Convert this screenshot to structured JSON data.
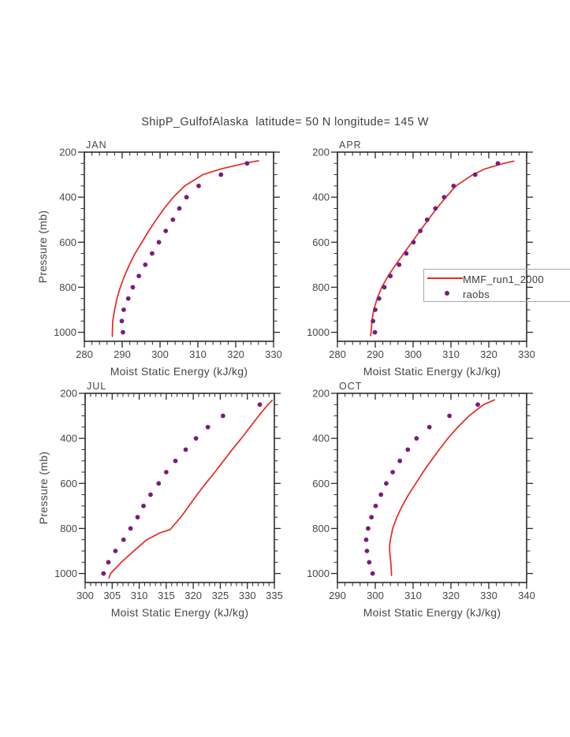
{
  "title": "ShipP_GulfofAlaska  latitude= 50 N longitude= 145 W",
  "colors": {
    "mmf_line": "#e8291f",
    "raobs_dot": "#7c1a7e",
    "frame": "#2a2a2a",
    "text": "#474747",
    "legend_border": "#a8a8a8"
  },
  "legend": {
    "items": [
      {
        "label": "MMF_run1_2000",
        "marker": "red-line"
      },
      {
        "label": "raobs",
        "marker": "purple-dot"
      }
    ]
  },
  "chart_data": [
    {
      "type": "line",
      "panel_label": "JAN",
      "xlabel": "Moist Static Energy (kJ/kg)",
      "ylabel": "Pressure (mb)",
      "xlim": [
        280,
        330
      ],
      "xticks": [
        280,
        290,
        300,
        310,
        320,
        330
      ],
      "xminor_step": 2,
      "ylim": [
        200,
        1040
      ],
      "yticks": [
        200,
        400,
        600,
        800,
        1000
      ],
      "yminor_step": 50,
      "series": [
        {
          "name": "MMF_run1_2000",
          "kind": "line",
          "color_key": "mmf_line",
          "pressure": [
            1018,
            1000,
            950,
            900,
            850,
            800,
            750,
            700,
            650,
            600,
            550,
            500,
            450,
            400,
            350,
            300,
            275,
            250,
            238
          ],
          "values": [
            287.4,
            287.4,
            287.5,
            288.0,
            288.6,
            289.5,
            290.6,
            291.9,
            293.4,
            295.2,
            297.0,
            299.0,
            301.1,
            303.5,
            306.5,
            311.3,
            316.0,
            322.3,
            326.0
          ]
        },
        {
          "name": "raobs",
          "kind": "scatter",
          "color_key": "raobs_dot",
          "pressure": [
            1000,
            950,
            900,
            850,
            800,
            750,
            700,
            650,
            600,
            550,
            500,
            450,
            400,
            350,
            300,
            250
          ],
          "values": [
            290.2,
            289.9,
            290.4,
            291.6,
            292.8,
            294.4,
            296.1,
            297.9,
            299.7,
            301.5,
            303.4,
            305.1,
            307.0,
            310.2,
            316.1,
            323.0
          ]
        }
      ]
    },
    {
      "type": "line",
      "panel_label": "APR",
      "xlabel": "Moist Static Energy (kJ/kg)",
      "ylabel": "Pressure (mb)",
      "xlim": [
        280,
        330
      ],
      "xticks": [
        280,
        290,
        300,
        310,
        320,
        330
      ],
      "xminor_step": 2,
      "ylim": [
        200,
        1040
      ],
      "yticks": [
        200,
        400,
        600,
        800,
        1000
      ],
      "yminor_step": 50,
      "series": [
        {
          "name": "MMF_run1_2000",
          "kind": "line",
          "color_key": "mmf_line",
          "pressure": [
            1015,
            1000,
            950,
            900,
            850,
            800,
            750,
            700,
            650,
            600,
            550,
            500,
            450,
            400,
            350,
            300,
            275,
            250,
            240
          ],
          "values": [
            288.8,
            288.9,
            289.1,
            289.6,
            290.5,
            291.7,
            293.4,
            295.4,
            297.5,
            299.7,
            301.8,
            304.0,
            306.2,
            308.7,
            311.3,
            315.8,
            318.9,
            323.9,
            326.6
          ]
        },
        {
          "name": "raobs",
          "kind": "scatter",
          "color_key": "raobs_dot",
          "pressure": [
            1000,
            950,
            900,
            850,
            800,
            750,
            700,
            650,
            600,
            550,
            500,
            450,
            400,
            350,
            300,
            250
          ],
          "values": [
            289.9,
            289.4,
            290.0,
            291.0,
            292.4,
            294.0,
            296.3,
            298.2,
            300.1,
            301.9,
            303.7,
            305.9,
            308.2,
            310.7,
            316.4,
            322.4
          ]
        }
      ]
    },
    {
      "type": "line",
      "panel_label": "JUL",
      "xlabel": "Moist Static Energy (kJ/kg)",
      "ylabel": "Pressure (mb)",
      "xlim": [
        300,
        335
      ],
      "xticks": [
        300,
        305,
        310,
        315,
        320,
        325,
        330,
        335
      ],
      "xminor_step": 1,
      "ylim": [
        200,
        1040
      ],
      "yticks": [
        200,
        400,
        600,
        800,
        1000
      ],
      "yminor_step": 50,
      "series": [
        {
          "name": "MMF_run1_2000",
          "kind": "line",
          "color_key": "mmf_line",
          "pressure": [
            1020,
            1000,
            950,
            900,
            850,
            820,
            805,
            750,
            700,
            650,
            600,
            550,
            500,
            450,
            400,
            350,
            300,
            250,
            231
          ],
          "values": [
            304.4,
            304.7,
            306.7,
            309.0,
            311.4,
            313.8,
            315.7,
            317.7,
            319.2,
            320.7,
            322.3,
            324.0,
            325.6,
            327.2,
            328.9,
            330.5,
            332.1,
            333.8,
            334.6
          ]
        },
        {
          "name": "raobs",
          "kind": "scatter",
          "color_key": "raobs_dot",
          "pressure": [
            1000,
            950,
            900,
            850,
            800,
            750,
            700,
            650,
            600,
            550,
            500,
            450,
            400,
            350,
            300,
            250
          ],
          "values": [
            303.4,
            304.3,
            305.6,
            307.1,
            308.4,
            309.7,
            310.8,
            312.1,
            313.6,
            315.0,
            316.7,
            318.6,
            320.5,
            322.7,
            325.5,
            332.3
          ]
        }
      ]
    },
    {
      "type": "line",
      "panel_label": "OCT",
      "xlabel": "Moist Static Energy (kJ/kg)",
      "ylabel": "Pressure (mb)",
      "xlim": [
        290,
        340
      ],
      "xticks": [
        290,
        300,
        310,
        320,
        330,
        340
      ],
      "xminor_step": 2,
      "ylim": [
        200,
        1040
      ],
      "yticks": [
        200,
        400,
        600,
        800,
        1000
      ],
      "yminor_step": 50,
      "series": [
        {
          "name": "MMF_run1_2000",
          "kind": "line",
          "color_key": "mmf_line",
          "pressure": [
            1008,
            1000,
            950,
            900,
            875,
            850,
            800,
            750,
            700,
            650,
            600,
            550,
            500,
            450,
            400,
            350,
            300,
            250,
            229
          ],
          "values": [
            304.3,
            304.3,
            304.1,
            303.8,
            303.8,
            304.0,
            304.6,
            305.7,
            307.1,
            308.8,
            310.7,
            312.6,
            314.7,
            316.9,
            319.2,
            321.8,
            324.8,
            328.6,
            331.5
          ]
        },
        {
          "name": "raobs",
          "kind": "scatter",
          "color_key": "raobs_dot",
          "pressure": [
            1000,
            950,
            900,
            850,
            800,
            750,
            700,
            650,
            600,
            550,
            500,
            450,
            400,
            350,
            300,
            250
          ],
          "values": [
            299.3,
            298.4,
            297.8,
            297.6,
            298.1,
            299.0,
            300.1,
            301.5,
            302.9,
            304.6,
            306.5,
            308.6,
            310.9,
            314.3,
            319.6,
            327.1
          ]
        }
      ]
    }
  ]
}
